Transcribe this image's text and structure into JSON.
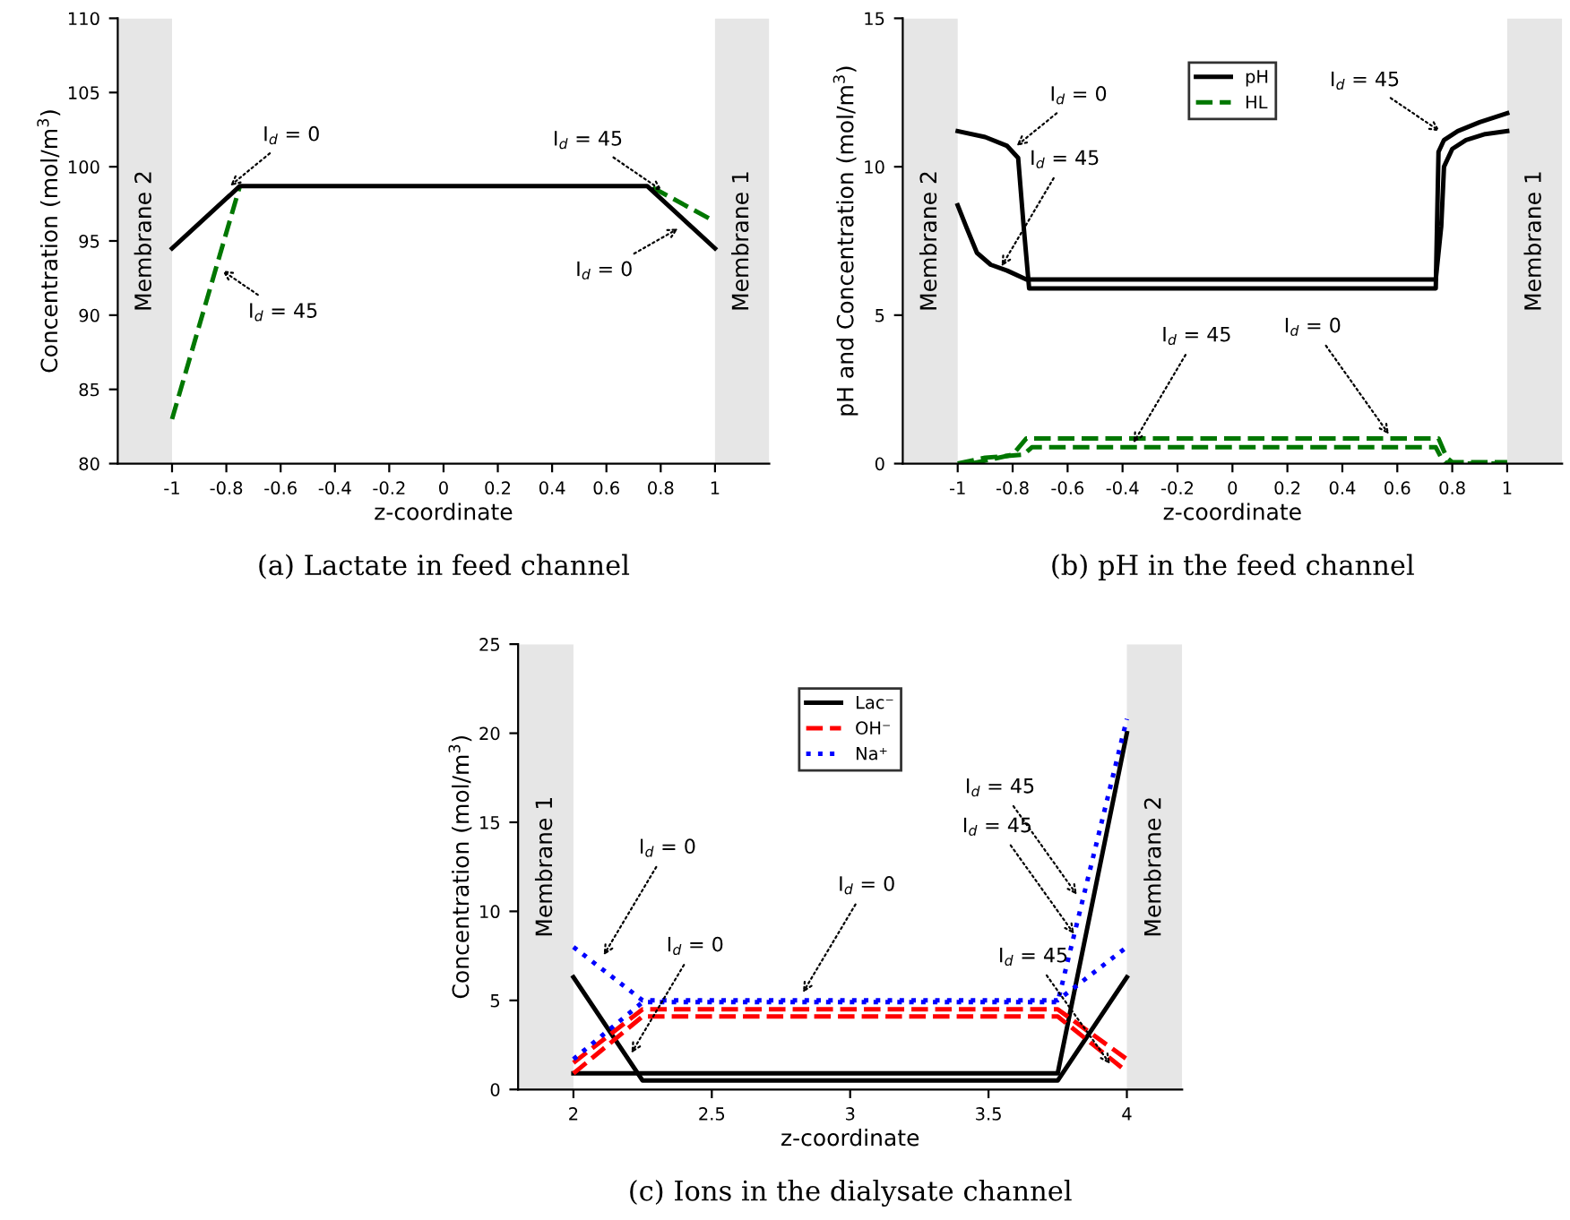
{
  "chart_data": [
    {
      "type": "line",
      "title": "(a) Lactate in feed channel",
      "xlabel": "z-coordinate",
      "ylabel": "Concentration (mol/m$^{3}$)",
      "xlim": [
        -1.2,
        1.2
      ],
      "xticks": [
        -1,
        -0.8,
        -0.6,
        -0.4,
        -0.2,
        0,
        0.2,
        0.4,
        0.6,
        0.8,
        1
      ],
      "ylim": [
        80,
        110
      ],
      "yticks": [
        80,
        85,
        90,
        95,
        100,
        105,
        110
      ],
      "grid": false,
      "legend": false,
      "marker": "none",
      "bands": [
        {
          "axis": "x",
          "from": -1.2,
          "to": -1,
          "label": "Membrane 2",
          "color": "#e6e6e6"
        },
        {
          "axis": "x",
          "from": 1,
          "to": 1.2,
          "label": "Membrane 1",
          "color": "#e6e6e6"
        }
      ],
      "series": [
        {
          "color": "#007700",
          "line_style": "dashed",
          "x": [
            -1,
            -0.75,
            0,
            0.77,
            1
          ],
          "values": [
            83,
            98.7,
            null,
            98.6,
            96.3
          ]
        },
        {
          "color": "#000000",
          "line_style": "solid",
          "x": [
            -1,
            -0.75,
            0.75,
            1
          ],
          "values": [
            94.5,
            98.7,
            98.7,
            94.5
          ]
        }
      ],
      "annotations": [
        {
          "text": "I$_{d}$ = 0",
          "x": -0.8,
          "y": 98.5
        },
        {
          "text": "I$_{d}$ = 45",
          "x": -0.83,
          "y": 93.2
        },
        {
          "text": "I$_{d}$ = 45",
          "x": 0.82,
          "y": 98.2
        },
        {
          "text": "I$_{d}$ = 0",
          "x": 0.88,
          "y": 96
        }
      ]
    },
    {
      "type": "line",
      "title": "(b) pH in the feed channel",
      "xlabel": "z-coordinate",
      "ylabel": "pH and Concentration (mol/m$^{3}$)",
      "xlim": [
        -1.2,
        1.2
      ],
      "xticks": [
        -1,
        -0.8,
        -0.6,
        -0.4,
        -0.2,
        0,
        0.2,
        0.4,
        0.6,
        0.8,
        1
      ],
      "ylim": [
        0,
        15
      ],
      "yticks": [
        0,
        5,
        10,
        15
      ],
      "grid": false,
      "legend": "top",
      "marker": "none",
      "bands": [
        {
          "axis": "x",
          "from": -1.2,
          "to": -1,
          "label": "Membrane 2",
          "color": "#e6e6e6"
        },
        {
          "axis": "x",
          "from": 1,
          "to": 1.2,
          "label": "Membrane 1",
          "color": "#e6e6e6"
        }
      ],
      "series": [
        {
          "name": "pH",
          "color": "#000000",
          "line_style": "solid",
          "x": [
            -1,
            -0.9,
            -0.82,
            -0.78,
            -0.76,
            -0.74,
            0.74,
            0.75,
            0.77,
            0.82,
            0.9,
            1
          ],
          "values": [
            11.2,
            11.0,
            10.7,
            10.3,
            8,
            5.9,
            5.9,
            10.5,
            10.9,
            11.2,
            11.5,
            11.8
          ]
        },
        {
          "color": "#000000",
          "line_style": "solid",
          "x": [
            -1,
            -0.97,
            -0.93,
            -0.88,
            -0.82,
            -0.75,
            0.74,
            0.76,
            0.77,
            0.8,
            0.85,
            0.92,
            1
          ],
          "values": [
            8.7,
            8,
            7.1,
            6.7,
            6.5,
            6.2,
            6.2,
            8,
            10,
            10.6,
            10.9,
            11.1,
            11.2
          ]
        },
        {
          "name": "HL",
          "color": "#007700",
          "line_style": "dashed",
          "x": [
            -0.95,
            -0.8,
            -0.75,
            0.75,
            0.78,
            0.8,
            1
          ],
          "values": [
            0,
            0.3,
            0.85,
            0.85,
            0.2,
            0.05,
            0.05
          ]
        },
        {
          "color": "#007700",
          "line_style": "dashed",
          "x": [
            -1,
            -0.9,
            -0.76,
            -0.73,
            0.74,
            0.76,
            0.78,
            1
          ],
          "values": [
            0,
            0.2,
            0.3,
            0.55,
            0.55,
            0.2,
            0,
            0
          ]
        }
      ],
      "annotations": [
        {
          "text": "I$_{d}$ = 0",
          "x": -0.8,
          "y": 10.6
        },
        {
          "text": "I$_{d}$ = 45",
          "x": -0.85,
          "y": 6.5
        },
        {
          "text": "I$_{d}$ = 45",
          "x": 0.77,
          "y": 11.1
        },
        {
          "text": "I$_{d}$ = 45",
          "x": -0.37,
          "y": 0.55
        },
        {
          "text": "I$_{d}$ = 0",
          "x": 0.58,
          "y": 0.85
        }
      ]
    },
    {
      "type": "line",
      "title": "(c) Ions in the dialysate channel",
      "xlabel": "z-coordinate",
      "ylabel": "Concentration (mol/m$^{3}$)",
      "xlim": [
        1.8,
        4.2
      ],
      "xticks": [
        2,
        2.5,
        3,
        3.5,
        4
      ],
      "ylim": [
        0,
        25
      ],
      "yticks": [
        0,
        5,
        10,
        15,
        20,
        25
      ],
      "grid": false,
      "legend": "top",
      "marker": "none",
      "bands": [
        {
          "axis": "x",
          "from": 1.8,
          "to": 2,
          "label": "Membrane 1",
          "color": "#e6e6e6"
        },
        {
          "axis": "x",
          "from": 4,
          "to": 4.2,
          "label": "Membrane 2",
          "color": "#e6e6e6"
        }
      ],
      "series": [
        {
          "name": "Lac⁻",
          "color": "#000000",
          "line_style": "solid",
          "x": [
            2,
            2.25,
            3.75,
            4
          ],
          "values": [
            6.3,
            0.5,
            0.5,
            6.3
          ]
        },
        {
          "color": "#000000",
          "line_style": "solid",
          "x": [
            2,
            3.75,
            4
          ],
          "values": [
            0.9,
            0.9,
            20
          ]
        },
        {
          "name": "OH⁻",
          "color": "#ff0000",
          "line_style": "dashed",
          "x": [
            2,
            2.25,
            3.75,
            4
          ],
          "values": [
            1.5,
            4.5,
            4.5,
            1.7
          ]
        },
        {
          "color": "#ff0000",
          "line_style": "dashed",
          "x": [
            2,
            2.25,
            3.75,
            4
          ],
          "values": [
            0.9,
            4.1,
            4.1,
            1
          ]
        },
        {
          "name": "Na⁺",
          "color": "#0000ff",
          "line_style": "dotted",
          "x": [
            2,
            2.25,
            3.75,
            4
          ],
          "values": [
            8,
            5,
            5,
            8
          ]
        },
        {
          "color": "#0000ff",
          "line_style": "dotted",
          "x": [
            2,
            2.25,
            3.75,
            4
          ],
          "values": [
            1.7,
            4.9,
            4.9,
            20.8
          ]
        }
      ],
      "annotations": [
        {
          "text": "I$_{d}$ = 0",
          "x": 2.1,
          "y": 7.3
        },
        {
          "text": "I$_{d}$ = 0",
          "x": 2.82,
          "y": 5.2
        },
        {
          "text": "I$_{d}$ = 0",
          "x": 2.2,
          "y": 1.8
        },
        {
          "text": "I$_{d}$ = 45",
          "x": 3.83,
          "y": 10.7
        },
        {
          "text": "I$_{d}$ = 45",
          "x": 3.82,
          "y": 8.5
        },
        {
          "text": "I$_{d}$ = 45",
          "x": 3.95,
          "y": 1.2
        }
      ]
    }
  ]
}
